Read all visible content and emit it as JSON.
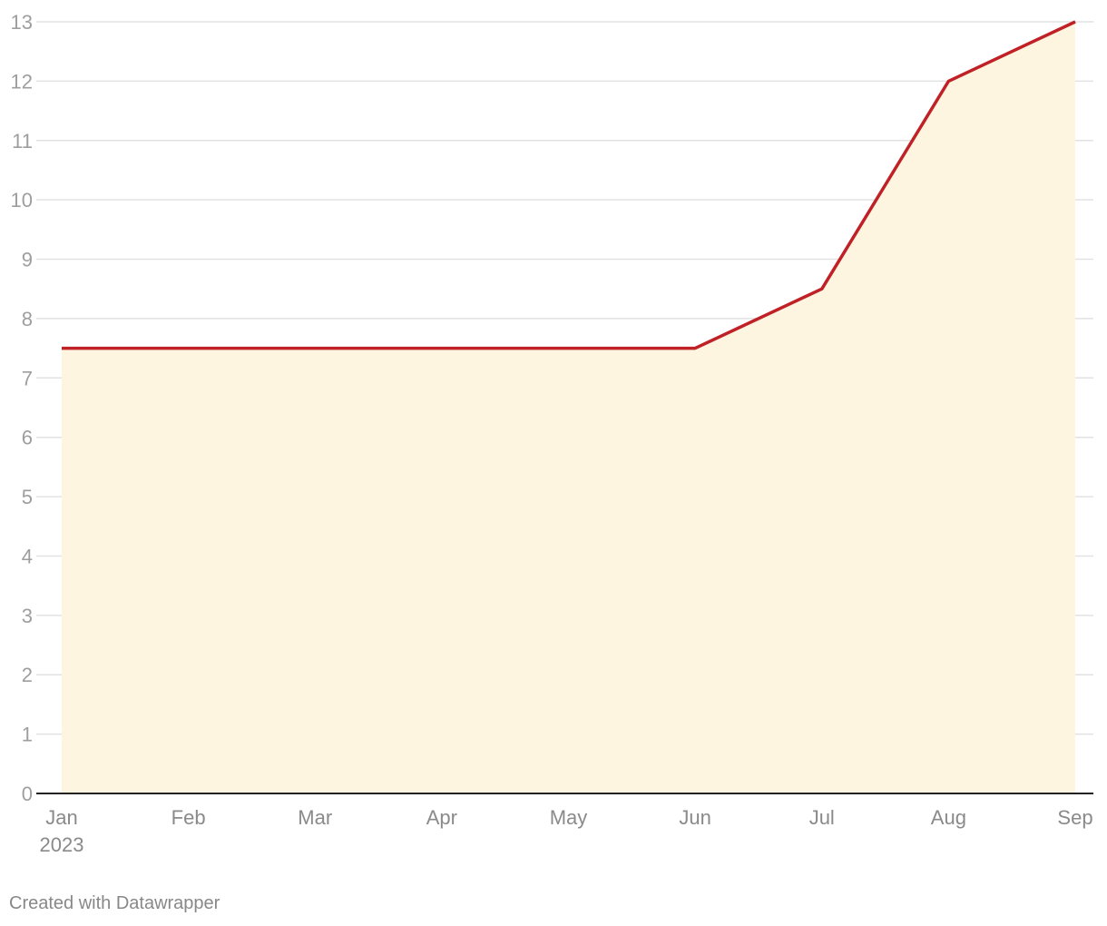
{
  "chart_data": {
    "type": "area",
    "x": [
      "Jan",
      "Feb",
      "Mar",
      "Apr",
      "May",
      "Jun",
      "Jul",
      "Aug",
      "Sep"
    ],
    "x_year_label": "2023",
    "series": [
      {
        "values": [
          7.5,
          7.5,
          7.5,
          7.5,
          7.5,
          7.5,
          8.5,
          12,
          13
        ]
      }
    ],
    "ylim": [
      0,
      13
    ],
    "yticks": [
      "0",
      "1",
      "2",
      "3",
      "4",
      "5",
      "6",
      "7",
      "8",
      "9",
      "10",
      "11",
      "12",
      "13"
    ],
    "grid": true,
    "colors": {
      "line": "#c02126",
      "fill": "#fdf5e0",
      "grid": "#e2e2e2",
      "baseline": "#222222"
    }
  },
  "footer": {
    "credit": "Created with Datawrapper"
  }
}
